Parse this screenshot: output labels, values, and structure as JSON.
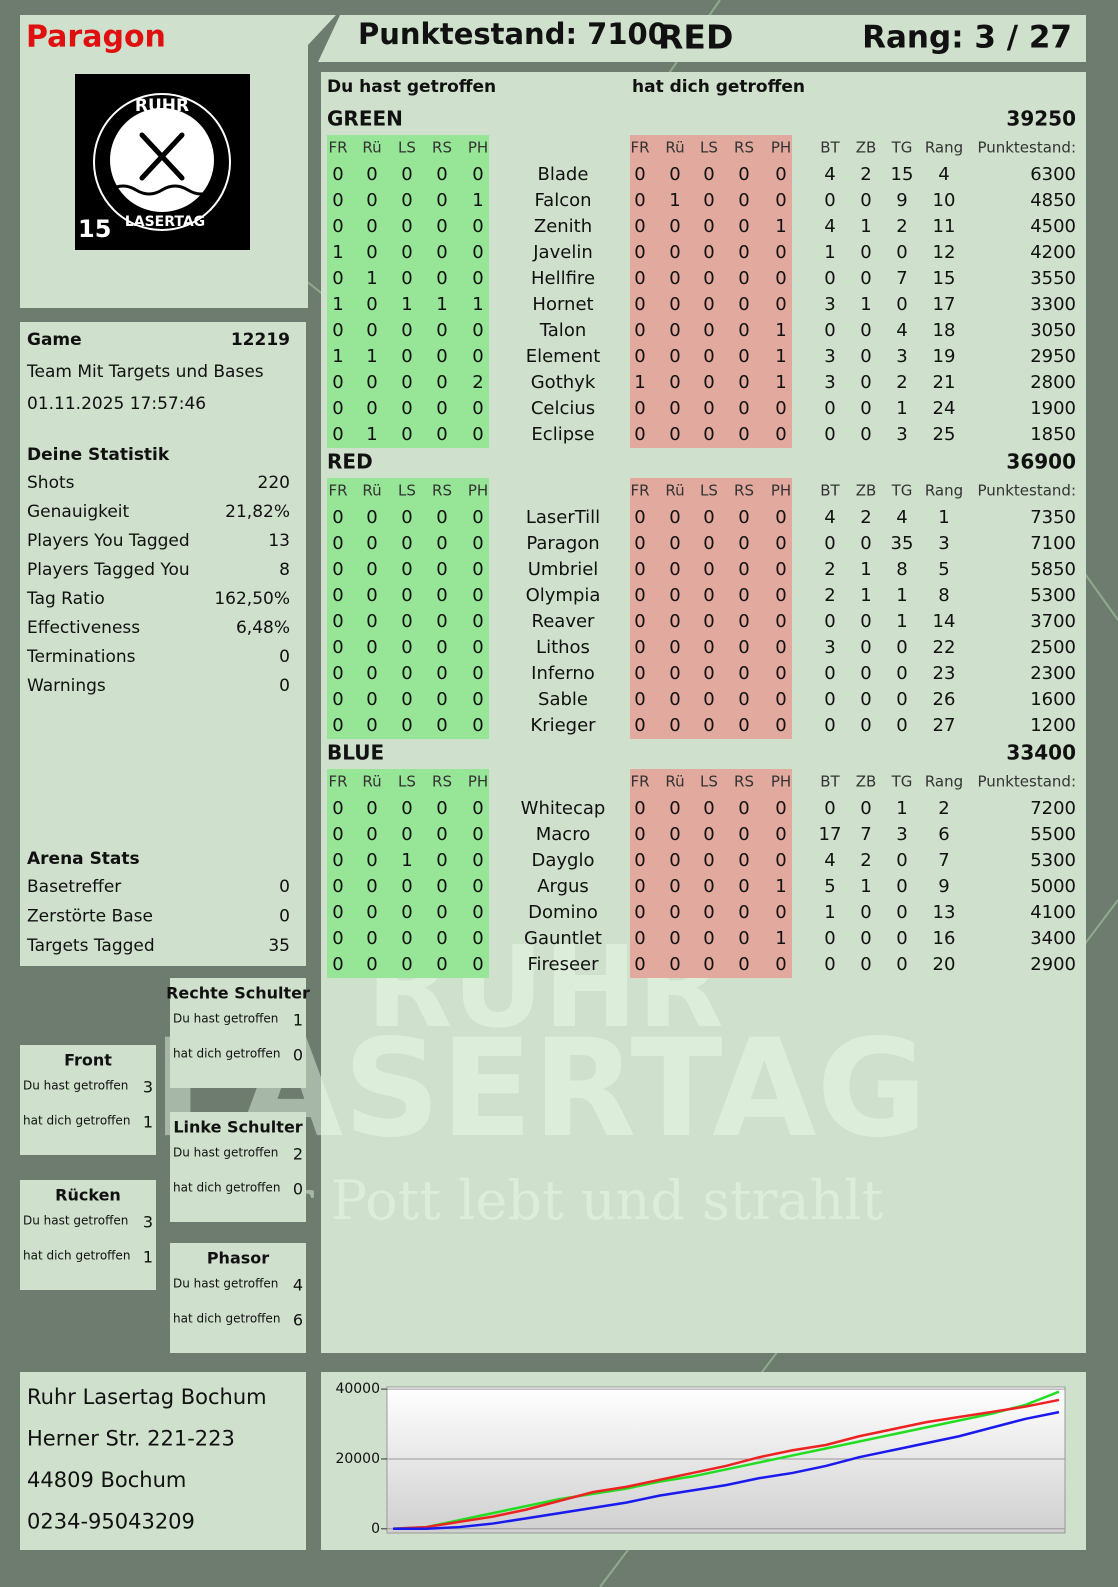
{
  "header": {
    "player": "Paragon",
    "score": "Punktestand: 7100",
    "team": "RED",
    "rank": "Rang: 3 / 27"
  },
  "logo": {
    "top": "RUHR",
    "bottom": "LASERTAG",
    "badge": "15"
  },
  "game": {
    "label": "Game",
    "id": "12219",
    "mode": "Team Mit Targets und Bases",
    "date": "01.11.2025 17:57:46"
  },
  "statistics": {
    "title": "Deine Statistik",
    "rows": [
      [
        "Shots",
        "220"
      ],
      [
        "Genauigkeit",
        "21,82%"
      ],
      [
        "Players You Tagged",
        "13"
      ],
      [
        "Players Tagged You",
        "8"
      ],
      [
        "Tag Ratio",
        "162,50%"
      ],
      [
        "Effectiveness",
        "6,48%"
      ],
      [
        "Terminations",
        "0"
      ],
      [
        "Warnings",
        "0"
      ]
    ]
  },
  "arena": {
    "title": "Arena Stats",
    "rows": [
      [
        "Basetreffer",
        "0"
      ],
      [
        "Zerstörte Base",
        "0"
      ],
      [
        "Targets Tagged",
        "35"
      ]
    ]
  },
  "zones": [
    {
      "title": "Rechte Schulter",
      "rows": [
        [
          "Du hast getroffen",
          "1"
        ],
        [
          "hat dich getroffen",
          "0"
        ]
      ]
    },
    {
      "title": "Front",
      "rows": [
        [
          "Du hast getroffen",
          "3"
        ],
        [
          "hat dich getroffen",
          "1"
        ]
      ]
    },
    {
      "title": "Linke Schulter",
      "rows": [
        [
          "Du hast getroffen",
          "2"
        ],
        [
          "hat dich getroffen",
          "0"
        ]
      ]
    },
    {
      "title": "Rücken",
      "rows": [
        [
          "Du hast getroffen",
          "3"
        ],
        [
          "hat dich getroffen",
          "1"
        ]
      ]
    },
    {
      "title": "Phasor",
      "rows": [
        [
          "Du hast getroffen",
          "4"
        ],
        [
          "hat dich getroffen",
          "6"
        ]
      ]
    }
  ],
  "table": {
    "headers": [
      "Du hast getroffen",
      "hat dich getroffen"
    ],
    "columns": [
      "FR",
      "Rü",
      "LS",
      "RS",
      "PH",
      "FR",
      "Rü",
      "LS",
      "RS",
      "PH",
      "BT",
      "ZB",
      "TG",
      "Rang",
      "Punktestand:"
    ],
    "teams": [
      {
        "name": "GREEN",
        "score": 39250,
        "color": "#1ed81e",
        "rows": [
          [
            "Blade",
            0,
            0,
            0,
            0,
            0,
            0,
            0,
            0,
            0,
            0,
            4,
            2,
            15,
            4,
            6300
          ],
          [
            "Falcon",
            0,
            0,
            0,
            0,
            1,
            0,
            1,
            0,
            0,
            0,
            0,
            0,
            9,
            10,
            4850
          ],
          [
            "Zenith",
            0,
            0,
            0,
            0,
            0,
            0,
            0,
            0,
            0,
            1,
            4,
            1,
            2,
            11,
            4500
          ],
          [
            "Javelin",
            1,
            0,
            0,
            0,
            0,
            0,
            0,
            0,
            0,
            0,
            1,
            0,
            0,
            12,
            4200
          ],
          [
            "Hellfire",
            0,
            1,
            0,
            0,
            0,
            0,
            0,
            0,
            0,
            0,
            0,
            0,
            7,
            15,
            3550
          ],
          [
            "Hornet",
            1,
            0,
            1,
            1,
            1,
            0,
            0,
            0,
            0,
            0,
            3,
            1,
            0,
            17,
            3300
          ],
          [
            "Talon",
            0,
            0,
            0,
            0,
            0,
            0,
            0,
            0,
            0,
            1,
            0,
            0,
            4,
            18,
            3050
          ],
          [
            "Element",
            1,
            1,
            0,
            0,
            0,
            0,
            0,
            0,
            0,
            1,
            3,
            0,
            3,
            19,
            2950
          ],
          [
            "Gothyk",
            0,
            0,
            0,
            0,
            2,
            1,
            0,
            0,
            0,
            1,
            3,
            0,
            2,
            21,
            2800
          ],
          [
            "Celcius",
            0,
            0,
            0,
            0,
            0,
            0,
            0,
            0,
            0,
            0,
            0,
            0,
            1,
            24,
            1900
          ],
          [
            "Eclipse",
            0,
            1,
            0,
            0,
            0,
            0,
            0,
            0,
            0,
            0,
            0,
            0,
            3,
            25,
            1850
          ]
        ]
      },
      {
        "name": "RED",
        "score": 36900,
        "color": "#dd1111",
        "rows": [
          [
            "LaserTill",
            0,
            0,
            0,
            0,
            0,
            0,
            0,
            0,
            0,
            0,
            4,
            2,
            4,
            1,
            7350
          ],
          [
            "Paragon",
            0,
            0,
            0,
            0,
            0,
            0,
            0,
            0,
            0,
            0,
            0,
            0,
            35,
            3,
            7100
          ],
          [
            "Umbriel",
            0,
            0,
            0,
            0,
            0,
            0,
            0,
            0,
            0,
            0,
            2,
            1,
            8,
            5,
            5850
          ],
          [
            "Olympia",
            0,
            0,
            0,
            0,
            0,
            0,
            0,
            0,
            0,
            0,
            2,
            1,
            1,
            8,
            5300
          ],
          [
            "Reaver",
            0,
            0,
            0,
            0,
            0,
            0,
            0,
            0,
            0,
            0,
            0,
            0,
            1,
            14,
            3700
          ],
          [
            "Lithos",
            0,
            0,
            0,
            0,
            0,
            0,
            0,
            0,
            0,
            0,
            3,
            0,
            0,
            22,
            2500
          ],
          [
            "Inferno",
            0,
            0,
            0,
            0,
            0,
            0,
            0,
            0,
            0,
            0,
            0,
            0,
            0,
            23,
            2300
          ],
          [
            "Sable",
            0,
            0,
            0,
            0,
            0,
            0,
            0,
            0,
            0,
            0,
            0,
            0,
            0,
            26,
            1600
          ],
          [
            "Krieger",
            0,
            0,
            0,
            0,
            0,
            0,
            0,
            0,
            0,
            0,
            0,
            0,
            0,
            27,
            1200
          ]
        ]
      },
      {
        "name": "BLUE",
        "score": 33400,
        "color": "#1111dd",
        "rows": [
          [
            "Whitecap",
            0,
            0,
            0,
            0,
            0,
            0,
            0,
            0,
            0,
            0,
            0,
            0,
            1,
            2,
            7200
          ],
          [
            "Macro",
            0,
            0,
            0,
            0,
            0,
            0,
            0,
            0,
            0,
            0,
            17,
            7,
            3,
            6,
            5500
          ],
          [
            "Dayglo",
            0,
            0,
            1,
            0,
            0,
            0,
            0,
            0,
            0,
            0,
            4,
            2,
            0,
            7,
            5300
          ],
          [
            "Argus",
            0,
            0,
            0,
            0,
            0,
            0,
            0,
            0,
            0,
            1,
            5,
            1,
            0,
            9,
            5000
          ],
          [
            "Domino",
            0,
            0,
            0,
            0,
            0,
            0,
            0,
            0,
            0,
            0,
            1,
            0,
            0,
            13,
            4100
          ],
          [
            "Gauntlet",
            0,
            0,
            0,
            0,
            0,
            0,
            0,
            0,
            0,
            1,
            0,
            0,
            0,
            16,
            3400
          ],
          [
            "Fireseer",
            0,
            0,
            0,
            0,
            0,
            0,
            0,
            0,
            0,
            0,
            0,
            0,
            0,
            20,
            2900
          ]
        ]
      }
    ]
  },
  "address": [
    "Ruhr Lasertag Bochum",
    "Herner Str. 221-223",
    "44809 Bochum",
    "0234-95043209"
  ],
  "watermark": {
    "line1": "RUHR",
    "line2": "LASERTAG",
    "slogan": "Der Pott lebt und strahlt"
  },
  "chart_data": {
    "type": "line",
    "ylim": [
      -1200,
      40600
    ],
    "yticks": [
      0,
      20000,
      40000
    ],
    "grid": true,
    "series": [
      {
        "name": "GREEN",
        "color": "#22dd22",
        "values": [
          0,
          500,
          2500,
          4500,
          6500,
          8500,
          10000,
          11500,
          13500,
          15000,
          17000,
          19000,
          21000,
          23000,
          25000,
          27000,
          29000,
          31000,
          33000,
          35500,
          39250
        ]
      },
      {
        "name": "RED",
        "color": "#ee2222",
        "values": [
          0,
          500,
          2000,
          3500,
          5500,
          8000,
          10500,
          12000,
          14000,
          16000,
          18000,
          20500,
          22500,
          24000,
          26500,
          28500,
          30500,
          32000,
          33500,
          35000,
          36900
        ]
      },
      {
        "name": "BLUE",
        "color": "#1a1aee",
        "values": [
          0,
          0,
          500,
          1500,
          3000,
          4500,
          6000,
          7500,
          9500,
          11000,
          12500,
          14500,
          16000,
          18000,
          20500,
          22500,
          24500,
          26500,
          29000,
          31500,
          33400
        ]
      }
    ]
  }
}
